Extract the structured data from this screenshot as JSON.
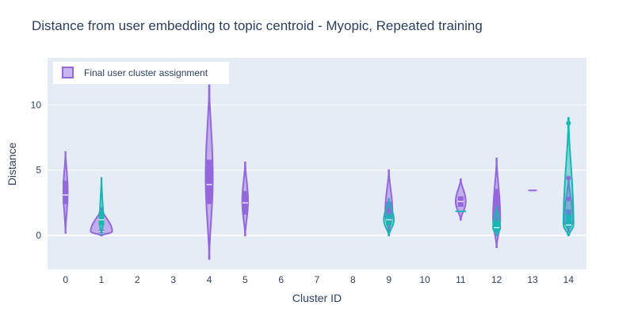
{
  "chart_data": {
    "type": "violin",
    "title": "Distance from user embedding to topic centroid - Myopic, Repeated training",
    "xlabel": "Cluster ID",
    "ylabel": "Distance",
    "x_ticks": [
      "0",
      "1",
      "2",
      "3",
      "4",
      "5",
      "6",
      "7",
      "8",
      "9",
      "10",
      "11",
      "12",
      "13",
      "14"
    ],
    "y_ticks": [
      0,
      5,
      10
    ],
    "ylim": [
      -2.6,
      13.6
    ],
    "grid": true,
    "legend": {
      "placement": "top-left",
      "entries": [
        "Final user cluster assignment"
      ]
    },
    "colors": {
      "purple": "#9467dd",
      "teal": "#17b8b4",
      "plot_bg": "#e5ecf6",
      "text": "#2a3f5f"
    },
    "series": [
      {
        "name": "Final user cluster assignment",
        "color": "#9467dd",
        "violins": [
          {
            "x": 0,
            "min": 0.2,
            "max": 6.4,
            "q1": 2.4,
            "median": 3.1,
            "q3": 4.2,
            "mode": 3.4,
            "width": 0.06
          },
          {
            "x": 1,
            "min": 0.0,
            "max": 2.1,
            "q1": 0.2,
            "median": 0.3,
            "q3": 0.45,
            "mode": 0.3,
            "width": 0.3
          },
          {
            "x": 4,
            "min": -1.8,
            "max": 11.5,
            "q1": 2.4,
            "median": 3.9,
            "q3": 5.8,
            "mode": 4.5,
            "width": 0.1
          },
          {
            "x": 5,
            "min": 0.0,
            "max": 5.6,
            "q1": 1.6,
            "median": 2.5,
            "q3": 3.4,
            "mode": 2.6,
            "width": 0.08
          },
          {
            "x": 9,
            "min": 0.2,
            "max": 5.0,
            "q1": 1.0,
            "median": 1.5,
            "q3": 2.6,
            "mode": 1.8,
            "width": 0.1
          },
          {
            "x": 11,
            "min": 1.2,
            "max": 4.3,
            "q1": 2.2,
            "median": 2.6,
            "q3": 3.0,
            "mode": 2.6,
            "width": 0.14
          },
          {
            "x": 12,
            "min": -0.9,
            "max": 5.9,
            "q1": 0.2,
            "median": 1.0,
            "q3": 3.5,
            "mode": 1.3,
            "width": 0.1
          },
          {
            "x": 13,
            "min": 3.45,
            "max": 3.45,
            "q1": 3.45,
            "median": 3.45,
            "q3": 3.45,
            "mode": 3.45,
            "width": 0.12
          },
          {
            "x": 14,
            "min": 0.3,
            "max": 4.4,
            "q1": 0.9,
            "median": 1.3,
            "q3": 2.0,
            "mode": 1.2,
            "width": 0.12
          }
        ]
      },
      {
        "name": "",
        "color": "#17b8b4",
        "violins": [
          {
            "x": 1,
            "min": 0.1,
            "max": 4.4,
            "q1": 0.8,
            "median": 1.2,
            "q3": 1.8,
            "mode": 1.0,
            "width": 0.05
          },
          {
            "x": 9,
            "min": 0.0,
            "max": 2.8,
            "q1": 0.8,
            "median": 1.2,
            "q3": 1.6,
            "mode": 1.2,
            "width": 0.14
          },
          {
            "x": 11,
            "min": 1.8,
            "max": 1.9,
            "q1": 1.85,
            "median": 1.85,
            "q3": 1.85,
            "mode": 1.85,
            "width": 0.15
          },
          {
            "x": 12,
            "min": 0.0,
            "max": 2.2,
            "q1": 0.3,
            "median": 0.6,
            "q3": 1.1,
            "mode": 0.6,
            "width": 0.1
          },
          {
            "x": 14,
            "min": 0.0,
            "max": 9.0,
            "q1": 0.6,
            "median": 0.8,
            "q3": 1.6,
            "mode": 0.8,
            "width": 0.14
          }
        ]
      }
    ],
    "outliers": [
      {
        "x": 14,
        "y": 8.6,
        "color": "#17b8b4"
      },
      {
        "x": 14,
        "y": 4.4,
        "color": "#9467dd"
      },
      {
        "x": 14,
        "y": 2.8,
        "color": "#9467dd"
      },
      {
        "x": 9,
        "y": 1.9,
        "color": "#9467dd"
      },
      {
        "x": 12,
        "y": 3.4,
        "color": "#9467dd"
      }
    ]
  }
}
